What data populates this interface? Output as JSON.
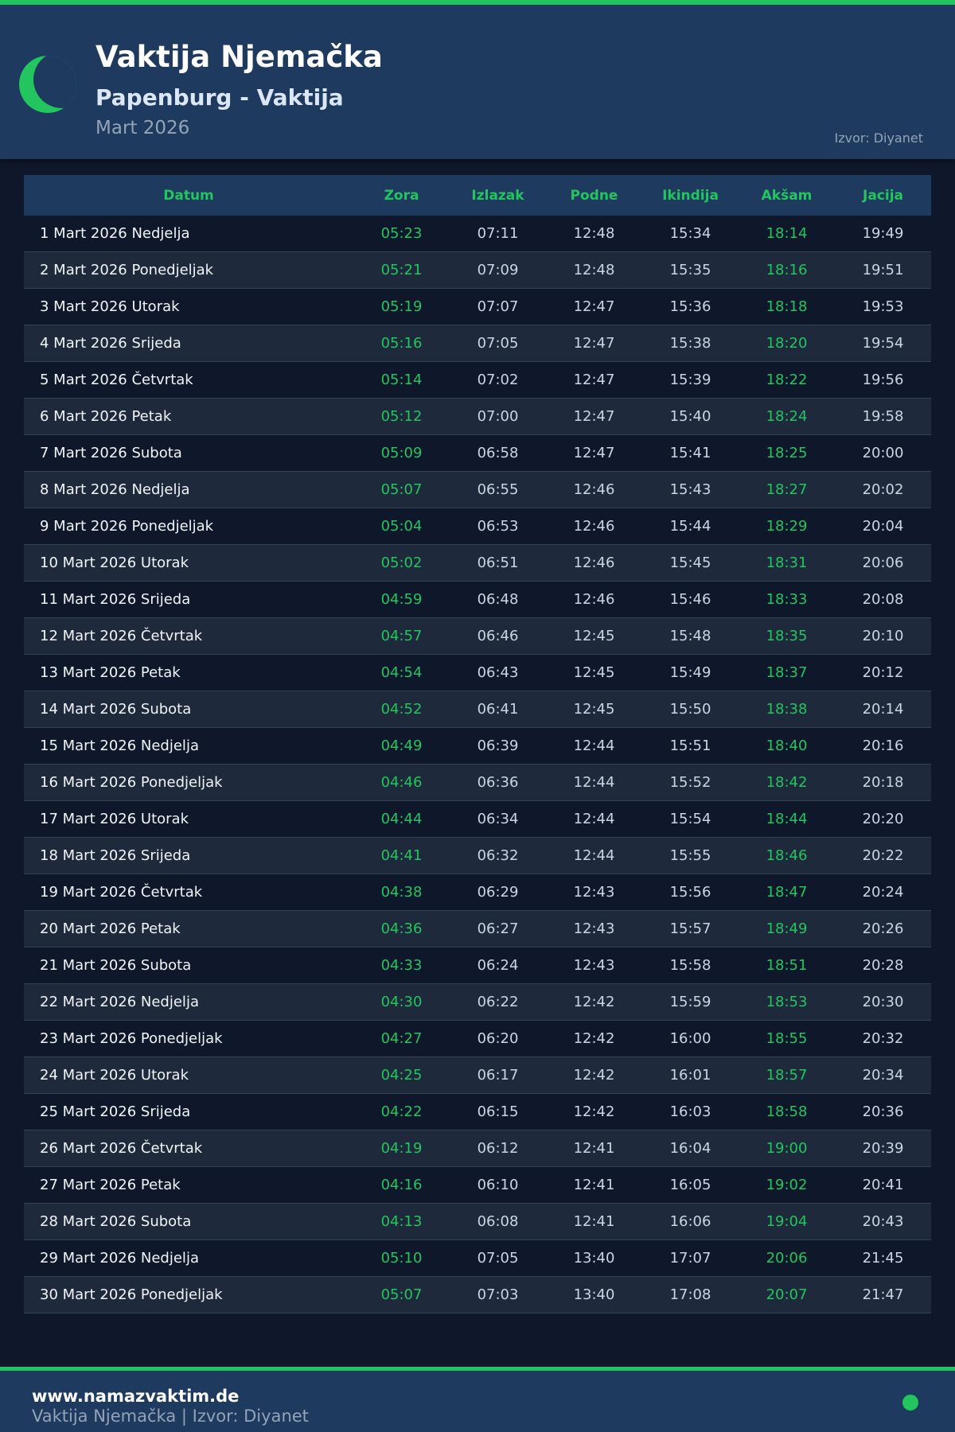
{
  "header": {
    "title": "Vaktija Njemačka",
    "subtitle": "Papenburg - Vaktija",
    "month": "Mart 2026",
    "source": "Izvor: Diyanet",
    "icon": "crescent-moon-icon"
  },
  "colors": {
    "accent": "#22c55e",
    "header_bg": "#1e3a5f",
    "page_bg": "#0f172a"
  },
  "table": {
    "columns": [
      "Datum",
      "Zora",
      "Izlazak",
      "Podne",
      "Ikindija",
      "Akšam",
      "Jacija"
    ],
    "rows": [
      [
        "1 Mart 2026 Nedjelja",
        "05:23",
        "07:11",
        "12:48",
        "15:34",
        "18:14",
        "19:49"
      ],
      [
        "2 Mart 2026 Ponedjeljak",
        "05:21",
        "07:09",
        "12:48",
        "15:35",
        "18:16",
        "19:51"
      ],
      [
        "3 Mart 2026 Utorak",
        "05:19",
        "07:07",
        "12:47",
        "15:36",
        "18:18",
        "19:53"
      ],
      [
        "4 Mart 2026 Srijeda",
        "05:16",
        "07:05",
        "12:47",
        "15:38",
        "18:20",
        "19:54"
      ],
      [
        "5 Mart 2026 Četvrtak",
        "05:14",
        "07:02",
        "12:47",
        "15:39",
        "18:22",
        "19:56"
      ],
      [
        "6 Mart 2026 Petak",
        "05:12",
        "07:00",
        "12:47",
        "15:40",
        "18:24",
        "19:58"
      ],
      [
        "7 Mart 2026 Subota",
        "05:09",
        "06:58",
        "12:47",
        "15:41",
        "18:25",
        "20:00"
      ],
      [
        "8 Mart 2026 Nedjelja",
        "05:07",
        "06:55",
        "12:46",
        "15:43",
        "18:27",
        "20:02"
      ],
      [
        "9 Mart 2026 Ponedjeljak",
        "05:04",
        "06:53",
        "12:46",
        "15:44",
        "18:29",
        "20:04"
      ],
      [
        "10 Mart 2026 Utorak",
        "05:02",
        "06:51",
        "12:46",
        "15:45",
        "18:31",
        "20:06"
      ],
      [
        "11 Mart 2026 Srijeda",
        "04:59",
        "06:48",
        "12:46",
        "15:46",
        "18:33",
        "20:08"
      ],
      [
        "12 Mart 2026 Četvrtak",
        "04:57",
        "06:46",
        "12:45",
        "15:48",
        "18:35",
        "20:10"
      ],
      [
        "13 Mart 2026 Petak",
        "04:54",
        "06:43",
        "12:45",
        "15:49",
        "18:37",
        "20:12"
      ],
      [
        "14 Mart 2026 Subota",
        "04:52",
        "06:41",
        "12:45",
        "15:50",
        "18:38",
        "20:14"
      ],
      [
        "15 Mart 2026 Nedjelja",
        "04:49",
        "06:39",
        "12:44",
        "15:51",
        "18:40",
        "20:16"
      ],
      [
        "16 Mart 2026 Ponedjeljak",
        "04:46",
        "06:36",
        "12:44",
        "15:52",
        "18:42",
        "20:18"
      ],
      [
        "17 Mart 2026 Utorak",
        "04:44",
        "06:34",
        "12:44",
        "15:54",
        "18:44",
        "20:20"
      ],
      [
        "18 Mart 2026 Srijeda",
        "04:41",
        "06:32",
        "12:44",
        "15:55",
        "18:46",
        "20:22"
      ],
      [
        "19 Mart 2026 Četvrtak",
        "04:38",
        "06:29",
        "12:43",
        "15:56",
        "18:47",
        "20:24"
      ],
      [
        "20 Mart 2026 Petak",
        "04:36",
        "06:27",
        "12:43",
        "15:57",
        "18:49",
        "20:26"
      ],
      [
        "21 Mart 2026 Subota",
        "04:33",
        "06:24",
        "12:43",
        "15:58",
        "18:51",
        "20:28"
      ],
      [
        "22 Mart 2026 Nedjelja",
        "04:30",
        "06:22",
        "12:42",
        "15:59",
        "18:53",
        "20:30"
      ],
      [
        "23 Mart 2026 Ponedjeljak",
        "04:27",
        "06:20",
        "12:42",
        "16:00",
        "18:55",
        "20:32"
      ],
      [
        "24 Mart 2026 Utorak",
        "04:25",
        "06:17",
        "12:42",
        "16:01",
        "18:57",
        "20:34"
      ],
      [
        "25 Mart 2026 Srijeda",
        "04:22",
        "06:15",
        "12:42",
        "16:03",
        "18:58",
        "20:36"
      ],
      [
        "26 Mart 2026 Četvrtak",
        "04:19",
        "06:12",
        "12:41",
        "16:04",
        "19:00",
        "20:39"
      ],
      [
        "27 Mart 2026 Petak",
        "04:16",
        "06:10",
        "12:41",
        "16:05",
        "19:02",
        "20:41"
      ],
      [
        "28 Mart 2026 Subota",
        "04:13",
        "06:08",
        "12:41",
        "16:06",
        "19:04",
        "20:43"
      ],
      [
        "29 Mart 2026 Nedjelja",
        "05:10",
        "07:05",
        "13:40",
        "17:07",
        "20:06",
        "21:45"
      ],
      [
        "30 Mart 2026 Ponedjeljak",
        "05:07",
        "07:03",
        "13:40",
        "17:08",
        "20:07",
        "21:47"
      ]
    ]
  },
  "footer": {
    "site": "www.namazvaktim.de",
    "text": "Vaktija Njemačka | Izvor: Diyanet"
  }
}
